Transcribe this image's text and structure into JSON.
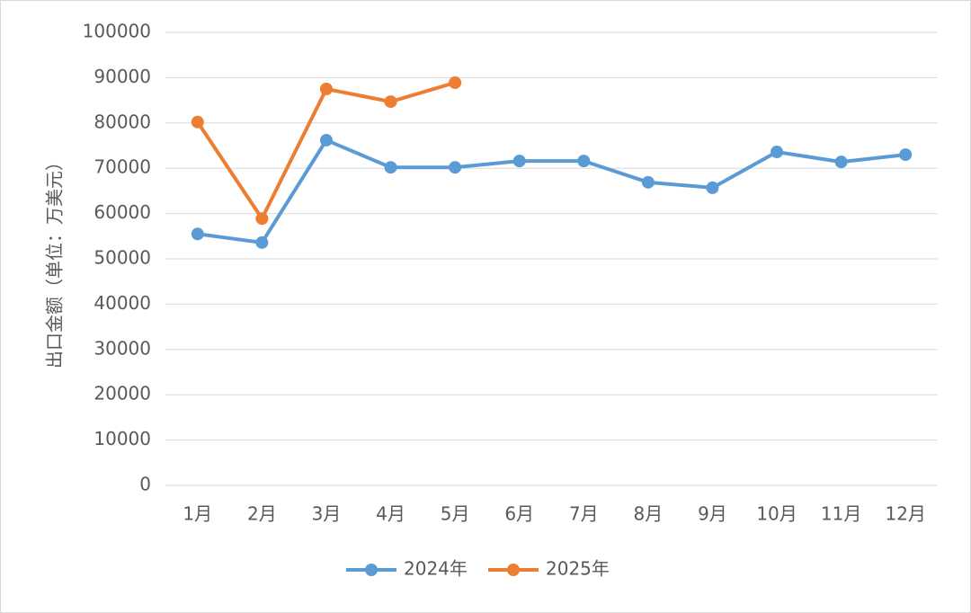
{
  "chart_data": {
    "type": "line",
    "y_label": "出口金额（单位：万美元）",
    "categories": [
      "1月",
      "2月",
      "3月",
      "4月",
      "5月",
      "6月",
      "7月",
      "8月",
      "9月",
      "10月",
      "11月",
      "12月"
    ],
    "series": [
      {
        "name": "2024年",
        "color": "#5b9bd5",
        "values": [
          55500,
          53600,
          76200,
          70200,
          70200,
          71600,
          71600,
          66900,
          65700,
          73600,
          71400,
          73000
        ]
      },
      {
        "name": "2025年",
        "color": "#ed7d31",
        "values": [
          80200,
          58900,
          87500,
          84700,
          88900,
          null,
          null,
          null,
          null,
          null,
          null,
          null
        ]
      }
    ],
    "ylim": [
      0,
      100000
    ],
    "yticks": [
      0,
      10000,
      20000,
      30000,
      40000,
      50000,
      60000,
      70000,
      80000,
      90000,
      100000
    ],
    "grid": true,
    "legend": "bottom"
  }
}
